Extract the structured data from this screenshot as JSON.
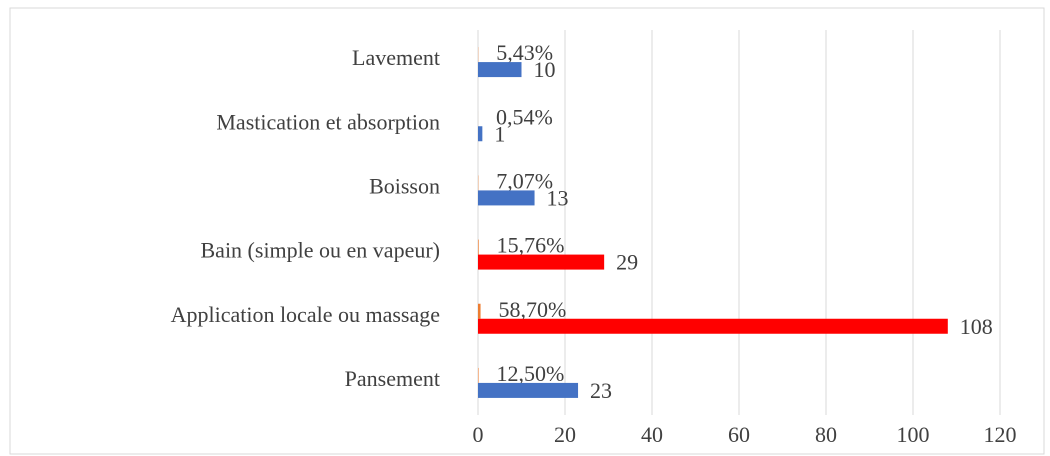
{
  "chart_data": {
    "type": "bar",
    "orientation": "horizontal",
    "categories": [
      "Lavement",
      "Mastication et absorption",
      "Boisson",
      "Bain (simple ou en vapeur)",
      "Application locale ou massage",
      "Pansement"
    ],
    "series": [
      {
        "color": "#ed7d31",
        "values": [
          0.0543,
          0.0054,
          0.0707,
          0.1576,
          0.587,
          0.125
        ],
        "value_labels": [
          "5,43%",
          "0,54%",
          "7,07%",
          "15,76%",
          "58,70%",
          "12,50%"
        ]
      },
      {
        "color": "#4472c4",
        "colors": [
          "#4472c4",
          "#4472c4",
          "#4472c4",
          "#ff0000",
          "#ff0000",
          "#4472c4"
        ],
        "values": [
          10,
          1,
          13,
          29,
          108,
          23
        ]
      }
    ],
    "xlim": [
      0,
      120
    ],
    "xticks": [
      0,
      20,
      40,
      60,
      80,
      100,
      120
    ],
    "grid": true
  }
}
